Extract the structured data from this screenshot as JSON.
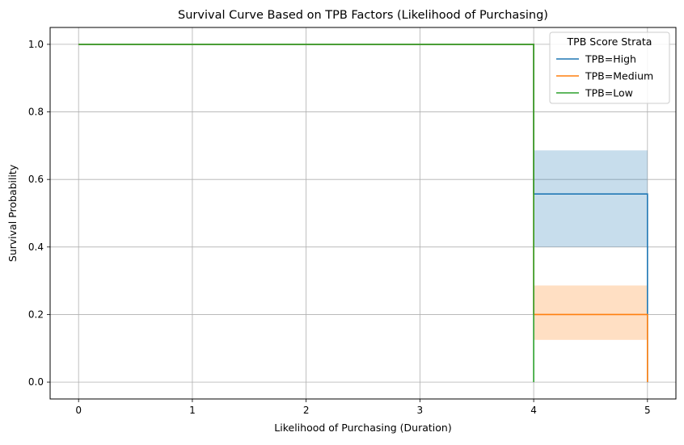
{
  "chart_data": {
    "type": "line",
    "title": "Survival Curve Based on TPB Factors (Likelihood of Purchasing)",
    "xlabel": "Likelihood of Purchasing (Duration)",
    "ylabel": "Survival Probability",
    "xlim": [
      -0.25,
      5.25
    ],
    "ylim": [
      -0.05,
      1.05
    ],
    "xticks": [
      0,
      1,
      2,
      3,
      4,
      5
    ],
    "yticks": [
      0.0,
      0.2,
      0.4,
      0.6,
      0.8,
      1.0
    ],
    "xtick_labels": [
      "0",
      "1",
      "2",
      "3",
      "4",
      "5"
    ],
    "ytick_labels": [
      "0.0",
      "0.2",
      "0.4",
      "0.6",
      "0.8",
      "1.0"
    ],
    "grid": true,
    "legend": {
      "title": "TPB Score Strata",
      "placement": "top-right"
    },
    "series": [
      {
        "name": "TPB=High",
        "color": "#1f77b4",
        "steps": [
          [
            0,
            1.0
          ],
          [
            4,
            0.557
          ],
          [
            5,
            0.0
          ]
        ],
        "ci": {
          "x": [
            4,
            5
          ],
          "lower": 0.4,
          "upper": 0.686
        }
      },
      {
        "name": "TPB=Medium",
        "color": "#ff7f0e",
        "steps": [
          [
            0,
            1.0
          ],
          [
            4,
            0.2
          ],
          [
            5,
            0.0
          ]
        ],
        "ci": {
          "x": [
            4,
            5
          ],
          "lower": 0.125,
          "upper": 0.286
        }
      },
      {
        "name": "TPB=Low",
        "color": "#2ca02c",
        "steps": [
          [
            0,
            1.0
          ],
          [
            4,
            0.0
          ]
        ],
        "ci": null
      }
    ]
  }
}
